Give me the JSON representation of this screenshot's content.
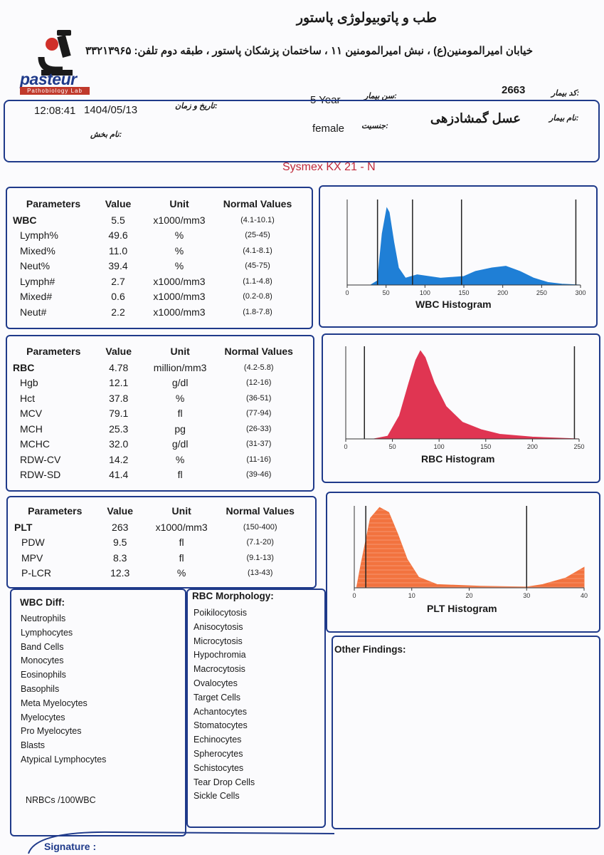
{
  "header": {
    "lab_name": "طب و پاتوبیولوژی پاستور",
    "address": "خیابان امیرالمومنین(ع) ، نبش امیرالمومنین ۱۱ ، ساختمان پزشکان پاستور ، طبقه دوم  تلفن: ۳۳۲۱۳۹۶۵",
    "logo_text": "pasteur",
    "logo_subtext": "Pathobiology Lab"
  },
  "patient": {
    "id_label": "کد بیمار:",
    "id_value": "2663",
    "age_label": "سن بیمار:",
    "age_value": "5 Year",
    "datetime_label": "تاریخ و زمان:",
    "date_value": "1404/05/13",
    "time_value": "12:08:41",
    "name_label": "نام بیمار:",
    "name_value": "عسل گمشادزهی",
    "sex_label": "جنسیت:",
    "sex_value": "female",
    "ward_label": "نام بخش:"
  },
  "device": "Sysmex KX 21 - N",
  "table_headers": {
    "param": "Parameters",
    "value": "Value",
    "unit": "Unit",
    "normal": "Normal Values"
  },
  "wbc_rows": [
    {
      "name": "WBC",
      "value": "5.5",
      "unit": "x1000/mm3",
      "normal": "(4.1-10.1)",
      "main": true
    },
    {
      "name": "Lymph%",
      "value": "49.6",
      "unit": "%",
      "normal": "(25-45)"
    },
    {
      "name": "Mixed%",
      "value": "11.0",
      "unit": "%",
      "normal": "(4.1-8.1)"
    },
    {
      "name": "Neut%",
      "value": "39.4",
      "unit": "%",
      "normal": "(45-75)"
    },
    {
      "name": "Lymph#",
      "value": "2.7",
      "unit": "x1000/mm3",
      "normal": "(1.1-4.8)"
    },
    {
      "name": "Mixed#",
      "value": "0.6",
      "unit": "x1000/mm3",
      "normal": "(0.2-0.8)"
    },
    {
      "name": "Neut#",
      "value": "2.2",
      "unit": "x1000/mm3",
      "normal": "(1.8-7.8)"
    }
  ],
  "rbc_rows": [
    {
      "name": "RBC",
      "value": "4.78",
      "unit": "million/mm3",
      "normal": "(4.2-5.8)",
      "main": true
    },
    {
      "name": "Hgb",
      "value": "12.1",
      "unit": "g/dl",
      "normal": "(12-16)"
    },
    {
      "name": "Hct",
      "value": "37.8",
      "unit": "%",
      "normal": "(36-51)"
    },
    {
      "name": "MCV",
      "value": "79.1",
      "unit": "fl",
      "normal": "(77-94)"
    },
    {
      "name": "MCH",
      "value": "25.3",
      "unit": "pg",
      "normal": "(26-33)"
    },
    {
      "name": "MCHC",
      "value": "32.0",
      "unit": "g/dl",
      "normal": "(31-37)"
    },
    {
      "name": "RDW-CV",
      "value": "14.2",
      "unit": "%",
      "normal": "(11-16)"
    },
    {
      "name": "RDW-SD",
      "value": "41.4",
      "unit": "fl",
      "normal": "(39-46)"
    }
  ],
  "plt_rows": [
    {
      "name": "PLT",
      "value": "263",
      "unit": "x1000/mm3",
      "normal": "(150-400)",
      "main": true
    },
    {
      "name": "PDW",
      "value": "9.5",
      "unit": "fl",
      "normal": "(7.1-20)"
    },
    {
      "name": "MPV",
      "value": "8.3",
      "unit": "fl",
      "normal": "(9.1-13)"
    },
    {
      "name": "P-LCR",
      "value": "12.3",
      "unit": "%",
      "normal": "(13-43)"
    }
  ],
  "histograms": {
    "wbc": {
      "title": "WBC Histogram",
      "ticks": [
        "0",
        "50",
        "100",
        "150",
        "200",
        "250",
        "300"
      ],
      "color": "#1f7fd6"
    },
    "rbc": {
      "title": "RBC Histogram",
      "ticks": [
        "0",
        "50",
        "100",
        "150",
        "200",
        "250"
      ],
      "color": "#e03552"
    },
    "plt": {
      "title": "PLT Histogram",
      "ticks": [
        "0",
        "10",
        "20",
        "30",
        "40"
      ],
      "color": "#f2733f"
    }
  },
  "wbc_diff": {
    "title": "WBC Diff:",
    "items": [
      "Neutrophils",
      "Lymphocytes",
      "Band Cells",
      "Monocytes",
      "Eosinophils",
      "Basophils",
      "Meta Myelocytes",
      "Myelocytes",
      "Pro Myelocytes",
      "Blasts",
      "Atypical Lymphocytes"
    ],
    "nrbc": "NRBCs /100WBC"
  },
  "rbc_morph": {
    "title": "RBC Morphology:",
    "items": [
      "Poikilocytosis",
      "Anisocytosis",
      "Microcytosis",
      "Hypochromia",
      "Macrocytosis",
      "Ovalocytes",
      "Target Cells",
      "Achantocytes",
      "Stomatocytes",
      "Echinocytes",
      "Spherocytes",
      "Schistocytes",
      "Tear Drop Cells",
      "Sickle Cells"
    ]
  },
  "other_findings": "Other Findings:",
  "signature": "Signature :"
}
